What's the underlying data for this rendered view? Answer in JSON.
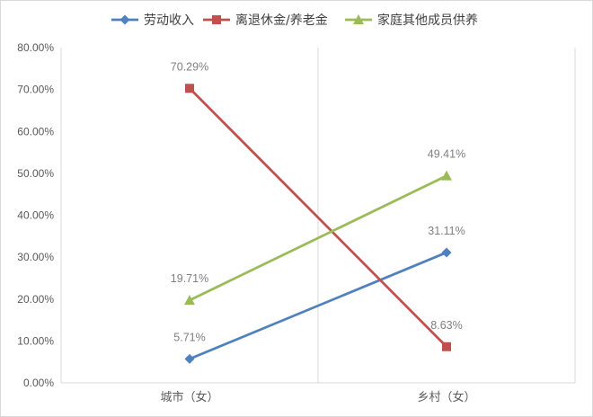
{
  "chart_data": {
    "type": "line",
    "categories": [
      "城市（女）",
      "乡村（女）"
    ],
    "series": [
      {
        "name": "劳动收入",
        "values": [
          5.71,
          31.11
        ],
        "labels": [
          "5.71%",
          "31.11%"
        ],
        "color": "#4f81bd",
        "marker": "diamond"
      },
      {
        "name": "离退休金/养老金",
        "values": [
          70.29,
          8.63
        ],
        "labels": [
          "70.29%",
          "8.63%"
        ],
        "color": "#c0504d",
        "marker": "square"
      },
      {
        "name": "家庭其他成员供养",
        "values": [
          19.71,
          49.41
        ],
        "labels": [
          "19.71%",
          "49.41%"
        ],
        "color": "#9bbb59",
        "marker": "triangle"
      }
    ],
    "ylim": [
      0,
      80
    ],
    "yticks": [
      "0.00%",
      "10.00%",
      "20.00%",
      "30.00%",
      "40.00%",
      "50.00%",
      "60.00%",
      "70.00%",
      "80.00%"
    ],
    "legend_position": "top",
    "grid": false,
    "category_divider": true
  }
}
